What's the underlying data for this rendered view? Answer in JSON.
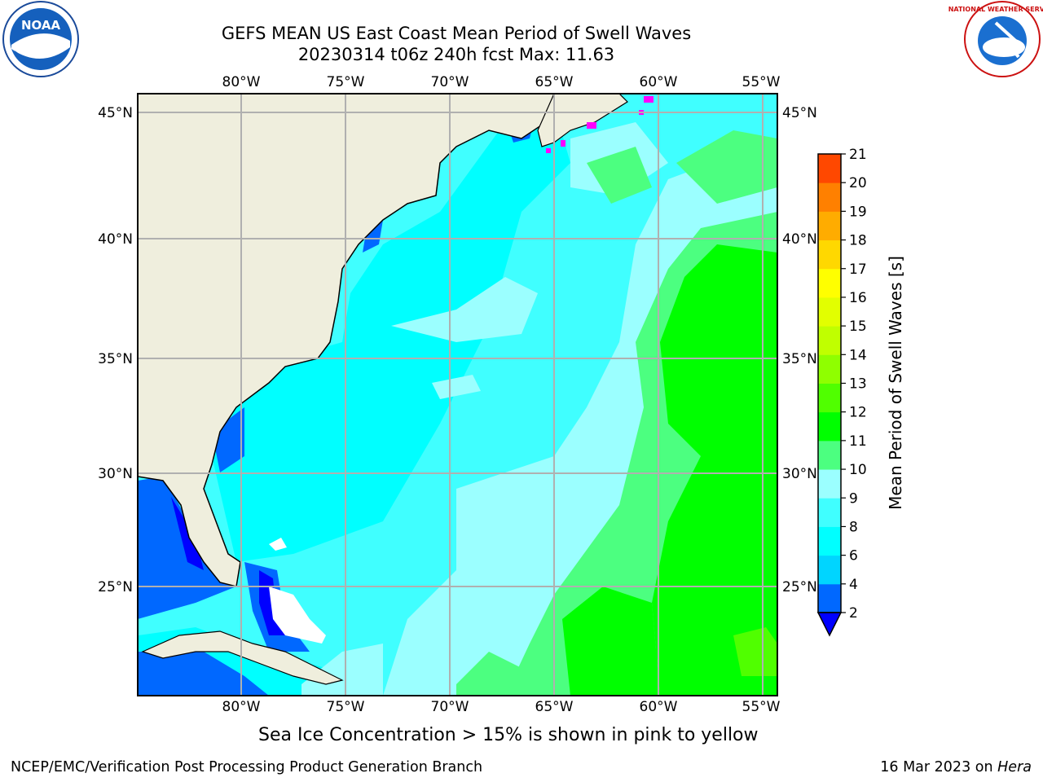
{
  "title_line1": "GEFS MEAN US East Coast Mean Period of Swell Waves",
  "title_line2": "20230314 t06z 240h fcst   Max: 11.63",
  "subtitle": "Sea Ice Concentration > 15% is shown in pink to yellow",
  "footer_left": "NCEP/EMC/Verification Post Processing Product Generation Branch",
  "footer_date": "16 Mar 2023 on",
  "footer_machine": "Hera",
  "logos": {
    "left": "NOAA",
    "right_text": "NATIONAL WEATHER SERVICE"
  },
  "map": {
    "lon_labels": [
      "80°W",
      "75°W",
      "70°W",
      "65°W",
      "60°W",
      "55°W"
    ],
    "lat_labels": [
      "45°N",
      "40°N",
      "35°N",
      "30°N",
      "25°N"
    ],
    "colors": {
      "land": "#efeedd",
      "gridline": "#b0b0b0"
    }
  },
  "colorbar": {
    "label": "Mean Period of Swell Waves [s]",
    "ticks": [
      "2",
      "4",
      "6",
      "8",
      "9",
      "10",
      "11",
      "12",
      "13",
      "14",
      "15",
      "16",
      "17",
      "18",
      "19",
      "20",
      "21"
    ],
    "colors": [
      "#0068ff",
      "#00d5ff",
      "#00ffff",
      "#40ffff",
      "#9bffff",
      "#4cff80",
      "#00ff00",
      "#50ff00",
      "#8fff00",
      "#c0ff00",
      "#e2ff00",
      "#ffff00",
      "#ffd800",
      "#ffac00",
      "#ff8000",
      "#ff4800",
      "#ff1000",
      "#ff0000"
    ],
    "under_color": "#0000ff"
  }
}
